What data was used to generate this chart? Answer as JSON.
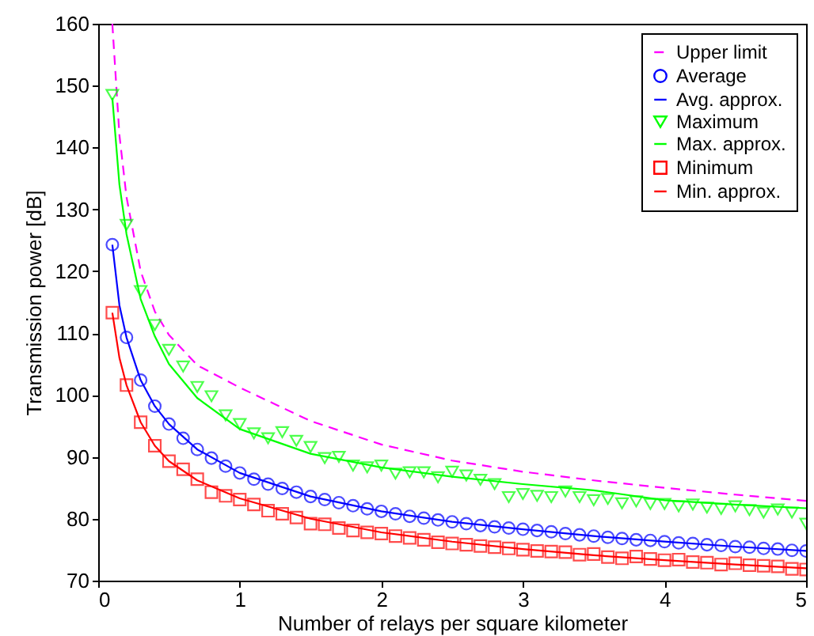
{
  "chart_data": {
    "type": "line",
    "xlabel": "Number of relays per square kilometer",
    "ylabel": "Transmission power [dB]",
    "xlim": [
      0,
      5
    ],
    "xticks": [
      0,
      1,
      2,
      3,
      4,
      5
    ],
    "ylim": [
      70,
      160
    ],
    "yticks": [
      70,
      80,
      90,
      100,
      110,
      120,
      130,
      140,
      150,
      160
    ],
    "grid": false,
    "legend": "top right",
    "x": [
      0.1,
      0.2,
      0.3,
      0.4,
      0.5,
      0.6,
      0.7,
      0.8,
      0.9,
      1.0,
      1.1,
      1.2,
      1.3,
      1.4,
      1.5,
      1.6,
      1.7,
      1.8,
      1.9,
      2.0,
      2.1,
      2.2,
      2.3,
      2.4,
      2.5,
      2.6,
      2.7,
      2.8,
      2.9,
      3.0,
      3.1,
      3.2,
      3.3,
      3.4,
      3.5,
      3.6,
      3.7,
      3.8,
      3.9,
      4.0,
      4.1,
      4.2,
      4.3,
      4.4,
      4.5,
      4.6,
      4.7,
      4.8,
      4.9,
      5.0
    ],
    "series": [
      {
        "name": "Upper limit",
        "color": "#ff00ff",
        "line_style": "dashed",
        "marker": "none",
        "x": [
          0.1,
          0.15,
          0.2,
          0.3,
          0.4,
          0.5,
          0.7,
          1,
          1.5,
          2,
          2.5,
          3,
          3.5,
          4,
          4.5,
          5
        ],
        "values": [
          160,
          142,
          132,
          120,
          113.5,
          109.7,
          104.8,
          101.2,
          95.8,
          92,
          89.4,
          87.6,
          86.2,
          85.0,
          83.9,
          82.9
        ]
      },
      {
        "name": "Average",
        "type": "scatter",
        "color": "#0000ff",
        "marker": "circle",
        "values": [
          124.3,
          109.3,
          102.4,
          98.2,
          95.3,
          93.0,
          91.2,
          89.8,
          88.5,
          87.4,
          86.4,
          85.6,
          84.9,
          84.3,
          83.6,
          83.1,
          82.6,
          82.1,
          81.6,
          81.2,
          80.8,
          80.4,
          80.1,
          79.8,
          79.5,
          79.2,
          78.9,
          78.7,
          78.5,
          78.3,
          78.1,
          77.9,
          77.6,
          77.4,
          77.2,
          77.0,
          76.8,
          76.6,
          76.5,
          76.3,
          76.1,
          76.0,
          75.8,
          75.7,
          75.5,
          75.4,
          75.2,
          75.1,
          74.9,
          74.8
        ]
      },
      {
        "name": "Avg. approx.",
        "color": "#0000ff",
        "line_style": "solid",
        "marker": "none",
        "x": [
          0.1,
          0.15,
          0.2,
          0.3,
          0.4,
          0.5,
          0.7,
          1,
          1.5,
          2,
          2.5,
          3,
          3.5,
          4,
          4.5,
          5
        ],
        "values": [
          124.3,
          114.5,
          109.3,
          102.4,
          98.2,
          95.3,
          91.2,
          87.4,
          83.6,
          81.2,
          79.5,
          78.3,
          77.2,
          76.3,
          75.5,
          74.8
        ]
      },
      {
        "name": "Maximum",
        "type": "scatter",
        "color": "#00ff00",
        "marker": "triangle-down",
        "values": [
          148.5,
          127.5,
          116.8,
          111.3,
          107.3,
          104.6,
          101.3,
          99.8,
          96.7,
          95.3,
          93.8,
          93.0,
          94.0,
          92.6,
          91.6,
          89.8,
          90.0,
          88.6,
          88.3,
          88.6,
          87.3,
          87.5,
          87.5,
          86.7,
          87.6,
          87.0,
          86.3,
          85.6,
          83.5,
          84.0,
          83.7,
          83.5,
          84.4,
          83.5,
          83.0,
          83.2,
          82.5,
          82.8,
          82.4,
          82.4,
          82.0,
          82.3,
          81.8,
          81.6,
          82.0,
          81.4,
          81.0,
          81.5,
          81.0,
          79.2
        ]
      },
      {
        "name": "Max. approx.",
        "color": "#00ff00",
        "line_style": "solid",
        "marker": "none",
        "x": [
          0.1,
          0.15,
          0.2,
          0.3,
          0.4,
          0.5,
          0.7,
          1,
          1.5,
          2,
          2.5,
          3,
          3.5,
          4,
          4.5,
          5
        ],
        "values": [
          148,
          134,
          126,
          115.5,
          109.5,
          105,
          99.5,
          94.5,
          90.5,
          88.3,
          86.8,
          85.6,
          84.6,
          83.0,
          82.3,
          81.7
        ]
      },
      {
        "name": "Minimum",
        "type": "scatter",
        "color": "#ff0000",
        "marker": "square",
        "values": [
          113.3,
          101.6,
          95.6,
          91.8,
          89.3,
          88.0,
          86.4,
          84.3,
          83.7,
          83.1,
          82.3,
          81.3,
          80.8,
          80.2,
          79.2,
          79.1,
          78.5,
          78.1,
          77.8,
          77.6,
          77.2,
          76.9,
          76.6,
          76.2,
          76.0,
          75.8,
          75.6,
          75.4,
          75.2,
          75.0,
          74.8,
          74.7,
          74.6,
          74.2,
          74.3,
          73.8,
          73.6,
          73.9,
          73.5,
          73.3,
          73.4,
          73.0,
          72.9,
          72.6,
          72.8,
          72.5,
          72.4,
          72.3,
          71.9,
          71.8
        ]
      },
      {
        "name": "Min. approx.",
        "color": "#ff0000",
        "line_style": "solid",
        "marker": "none",
        "x": [
          0.1,
          0.15,
          0.2,
          0.3,
          0.4,
          0.5,
          0.7,
          1,
          1.5,
          2,
          2.5,
          3,
          3.5,
          4,
          4.5,
          5
        ],
        "values": [
          113.3,
          106,
          101.6,
          95.6,
          91.8,
          89.3,
          86.2,
          83.3,
          80.0,
          77.8,
          76.3,
          75.1,
          74.1,
          73.3,
          72.6,
          72.0
        ]
      }
    ]
  }
}
